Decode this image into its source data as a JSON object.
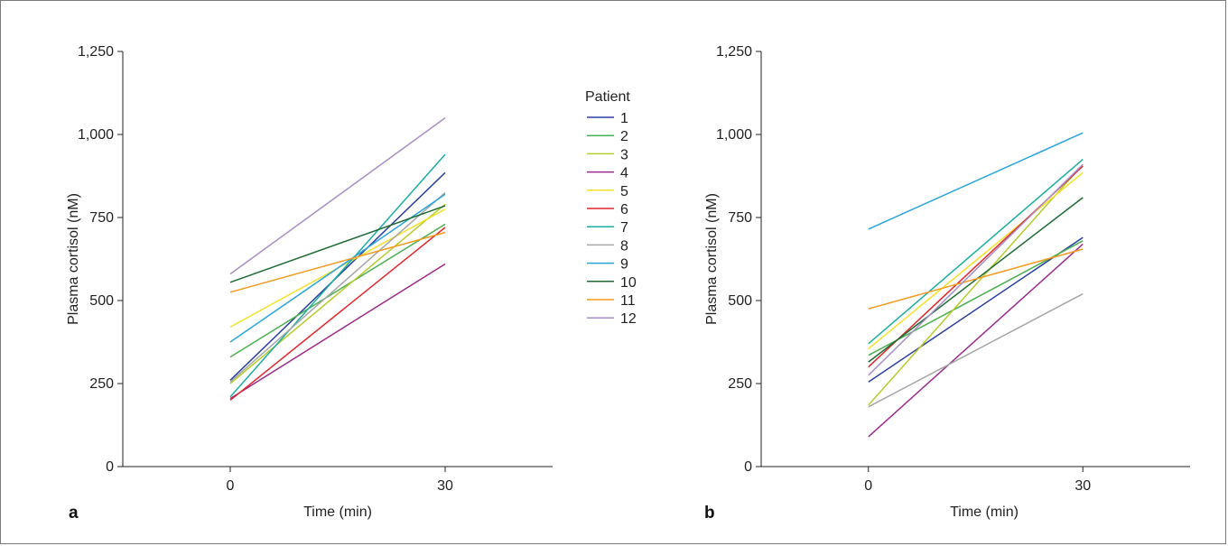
{
  "chart_data": [
    {
      "type": "line",
      "panel_label": "a",
      "xlabel": "Time (min)",
      "ylabel": "Plasma cortisol (nM)",
      "x": [
        0,
        30
      ],
      "x_tick_labels": [
        "0",
        "30"
      ],
      "xlim": [
        -15,
        45
      ],
      "ylim": [
        0,
        1250
      ],
      "y_ticks": [
        0,
        250,
        500,
        750,
        1000,
        1250
      ],
      "y_tick_labels": [
        "0",
        "250",
        "500",
        "750",
        "1,000",
        "1,250"
      ],
      "grid": false,
      "series": [
        {
          "name": "1",
          "color": "#2a3f9e",
          "values": [
            260,
            885
          ]
        },
        {
          "name": "2",
          "color": "#4caf50",
          "values": [
            330,
            730
          ]
        },
        {
          "name": "3",
          "color": "#b5cc2a",
          "values": [
            250,
            790
          ]
        },
        {
          "name": "4",
          "color": "#9c2a8c",
          "values": [
            205,
            610
          ]
        },
        {
          "name": "5",
          "color": "#f2e22a",
          "values": [
            420,
            775
          ]
        },
        {
          "name": "6",
          "color": "#e1262c",
          "values": [
            200,
            720
          ]
        },
        {
          "name": "7",
          "color": "#1aaea0",
          "values": [
            210,
            940
          ]
        },
        {
          "name": "8",
          "color": "#a6a6a6",
          "values": [
            255,
            825
          ]
        },
        {
          "name": "9",
          "color": "#2aa5dc",
          "values": [
            375,
            820
          ]
        },
        {
          "name": "10",
          "color": "#1f6b33",
          "values": [
            555,
            785
          ]
        },
        {
          "name": "11",
          "color": "#f39a1f",
          "values": [
            525,
            705
          ]
        },
        {
          "name": "12",
          "color": "#a78ec7",
          "values": [
            580,
            1050
          ]
        }
      ]
    },
    {
      "type": "line",
      "panel_label": "b",
      "xlabel": "Time (min)",
      "ylabel": "Plasma cortisol (nM)",
      "x": [
        0,
        30
      ],
      "x_tick_labels": [
        "0",
        "30"
      ],
      "xlim": [
        -15,
        45
      ],
      "ylim": [
        0,
        1250
      ],
      "y_ticks": [
        0,
        250,
        500,
        750,
        1000,
        1250
      ],
      "y_tick_labels": [
        "0",
        "250",
        "500",
        "750",
        "1,000",
        "1,250"
      ],
      "grid": false,
      "series": [
        {
          "name": "1",
          "color": "#2a3f9e",
          "values": [
            255,
            690
          ]
        },
        {
          "name": "2",
          "color": "#4caf50",
          "values": [
            335,
            680
          ]
        },
        {
          "name": "3",
          "color": "#b5cc2a",
          "values": [
            185,
            910
          ]
        },
        {
          "name": "4",
          "color": "#9c2a8c",
          "values": [
            90,
            670
          ]
        },
        {
          "name": "5",
          "color": "#f2e22a",
          "values": [
            355,
            885
          ]
        },
        {
          "name": "6",
          "color": "#e1262c",
          "values": [
            300,
            905
          ]
        },
        {
          "name": "7",
          "color": "#1aaea0",
          "values": [
            370,
            925
          ]
        },
        {
          "name": "8",
          "color": "#a6a6a6",
          "values": [
            180,
            520
          ]
        },
        {
          "name": "9",
          "color": "#2aa5dc",
          "values": [
            715,
            1005
          ]
        },
        {
          "name": "10",
          "color": "#1f6b33",
          "values": [
            315,
            810
          ]
        },
        {
          "name": "11",
          "color": "#f39a1f",
          "values": [
            475,
            655
          ]
        },
        {
          "name": "12",
          "color": "#a78ec7",
          "values": [
            275,
            910
          ]
        }
      ]
    }
  ],
  "legend": {
    "title": "Patient",
    "placement": "between panels"
  }
}
